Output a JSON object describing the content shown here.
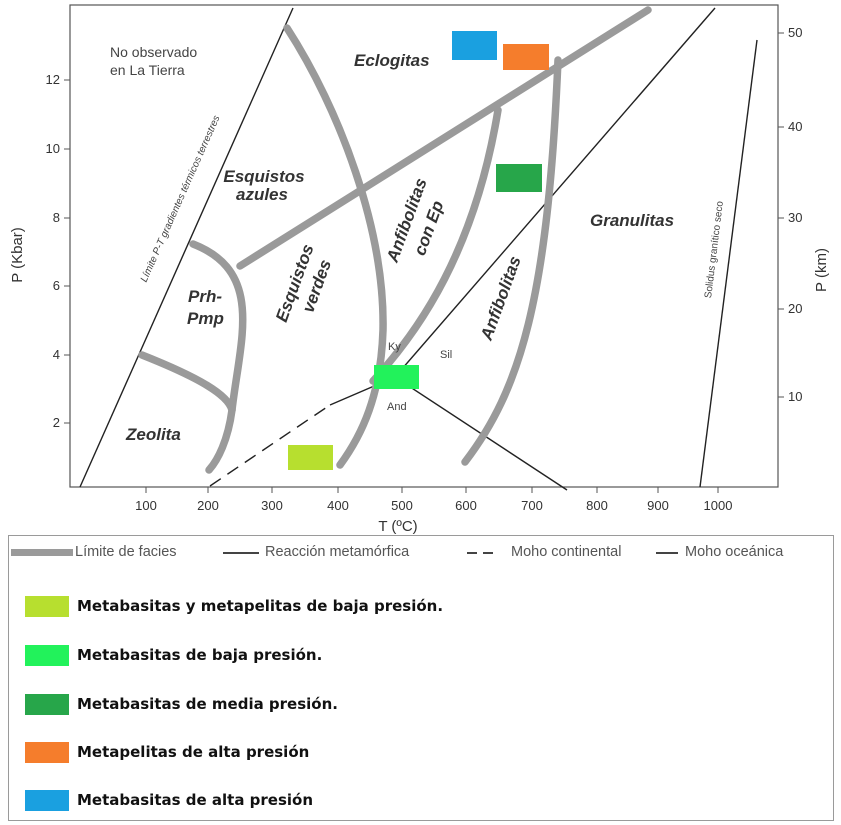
{
  "axes": {
    "x_label": "T (ºC)",
    "x_ticks": [
      "100",
      "200",
      "300",
      "400",
      "500",
      "600",
      "700",
      "800",
      "900",
      "1000"
    ],
    "y_left_label": "P (Kbar)",
    "y_left_ticks": [
      "2",
      "4",
      "6",
      "8",
      "10",
      "12"
    ],
    "y_right_label": "P (km)",
    "y_right_ticks": [
      "10",
      "20",
      "30",
      "40",
      "50"
    ]
  },
  "facies_labels": {
    "zeolita": "Zeolita",
    "prh": "Prh-",
    "pmp": "Pmp",
    "esquistos_verdes_1": "Esquistos",
    "esquistos_verdes_2": "verdes",
    "esquistos_azules_1": "Esquistos",
    "esquistos_azules_2": "azules",
    "anfibolitas_ep_1": "Anfibolitas",
    "anfibolitas_ep_2": "con Ep",
    "anfibolitas": "Anfibolitas",
    "granulitas": "Granulitas",
    "eclogitas": "Eclogitas"
  },
  "annotations": {
    "no_observado_1": "No observado",
    "no_observado_2": "en La Tierra",
    "limite_gradientes": "Límite P-T gradientes térmicos terrestres",
    "solidus": "Solidus granítico seco",
    "ky": "Ky",
    "sil": "Sil",
    "and": "And"
  },
  "legend_lines": {
    "facies": "Límite de facies",
    "reaction": "Reacción metamórfica",
    "moho_cont": "Moho continental",
    "moho_oce": "Moho oceánica"
  },
  "legend_items": [
    {
      "label": "Metabasitas y metapelitas de baja presión.",
      "color": "#b7df2f"
    },
    {
      "label": "Metabasitas de baja presión.",
      "color": "#22f25b"
    },
    {
      "label": "Metabasitas de media presión.",
      "color": "#27a64a"
    },
    {
      "label": "Metapelitas de alta presión",
      "color": "#f57d2c"
    },
    {
      "label": "Metabasitas de alta presión",
      "color": "#1aa0e0"
    }
  ]
}
